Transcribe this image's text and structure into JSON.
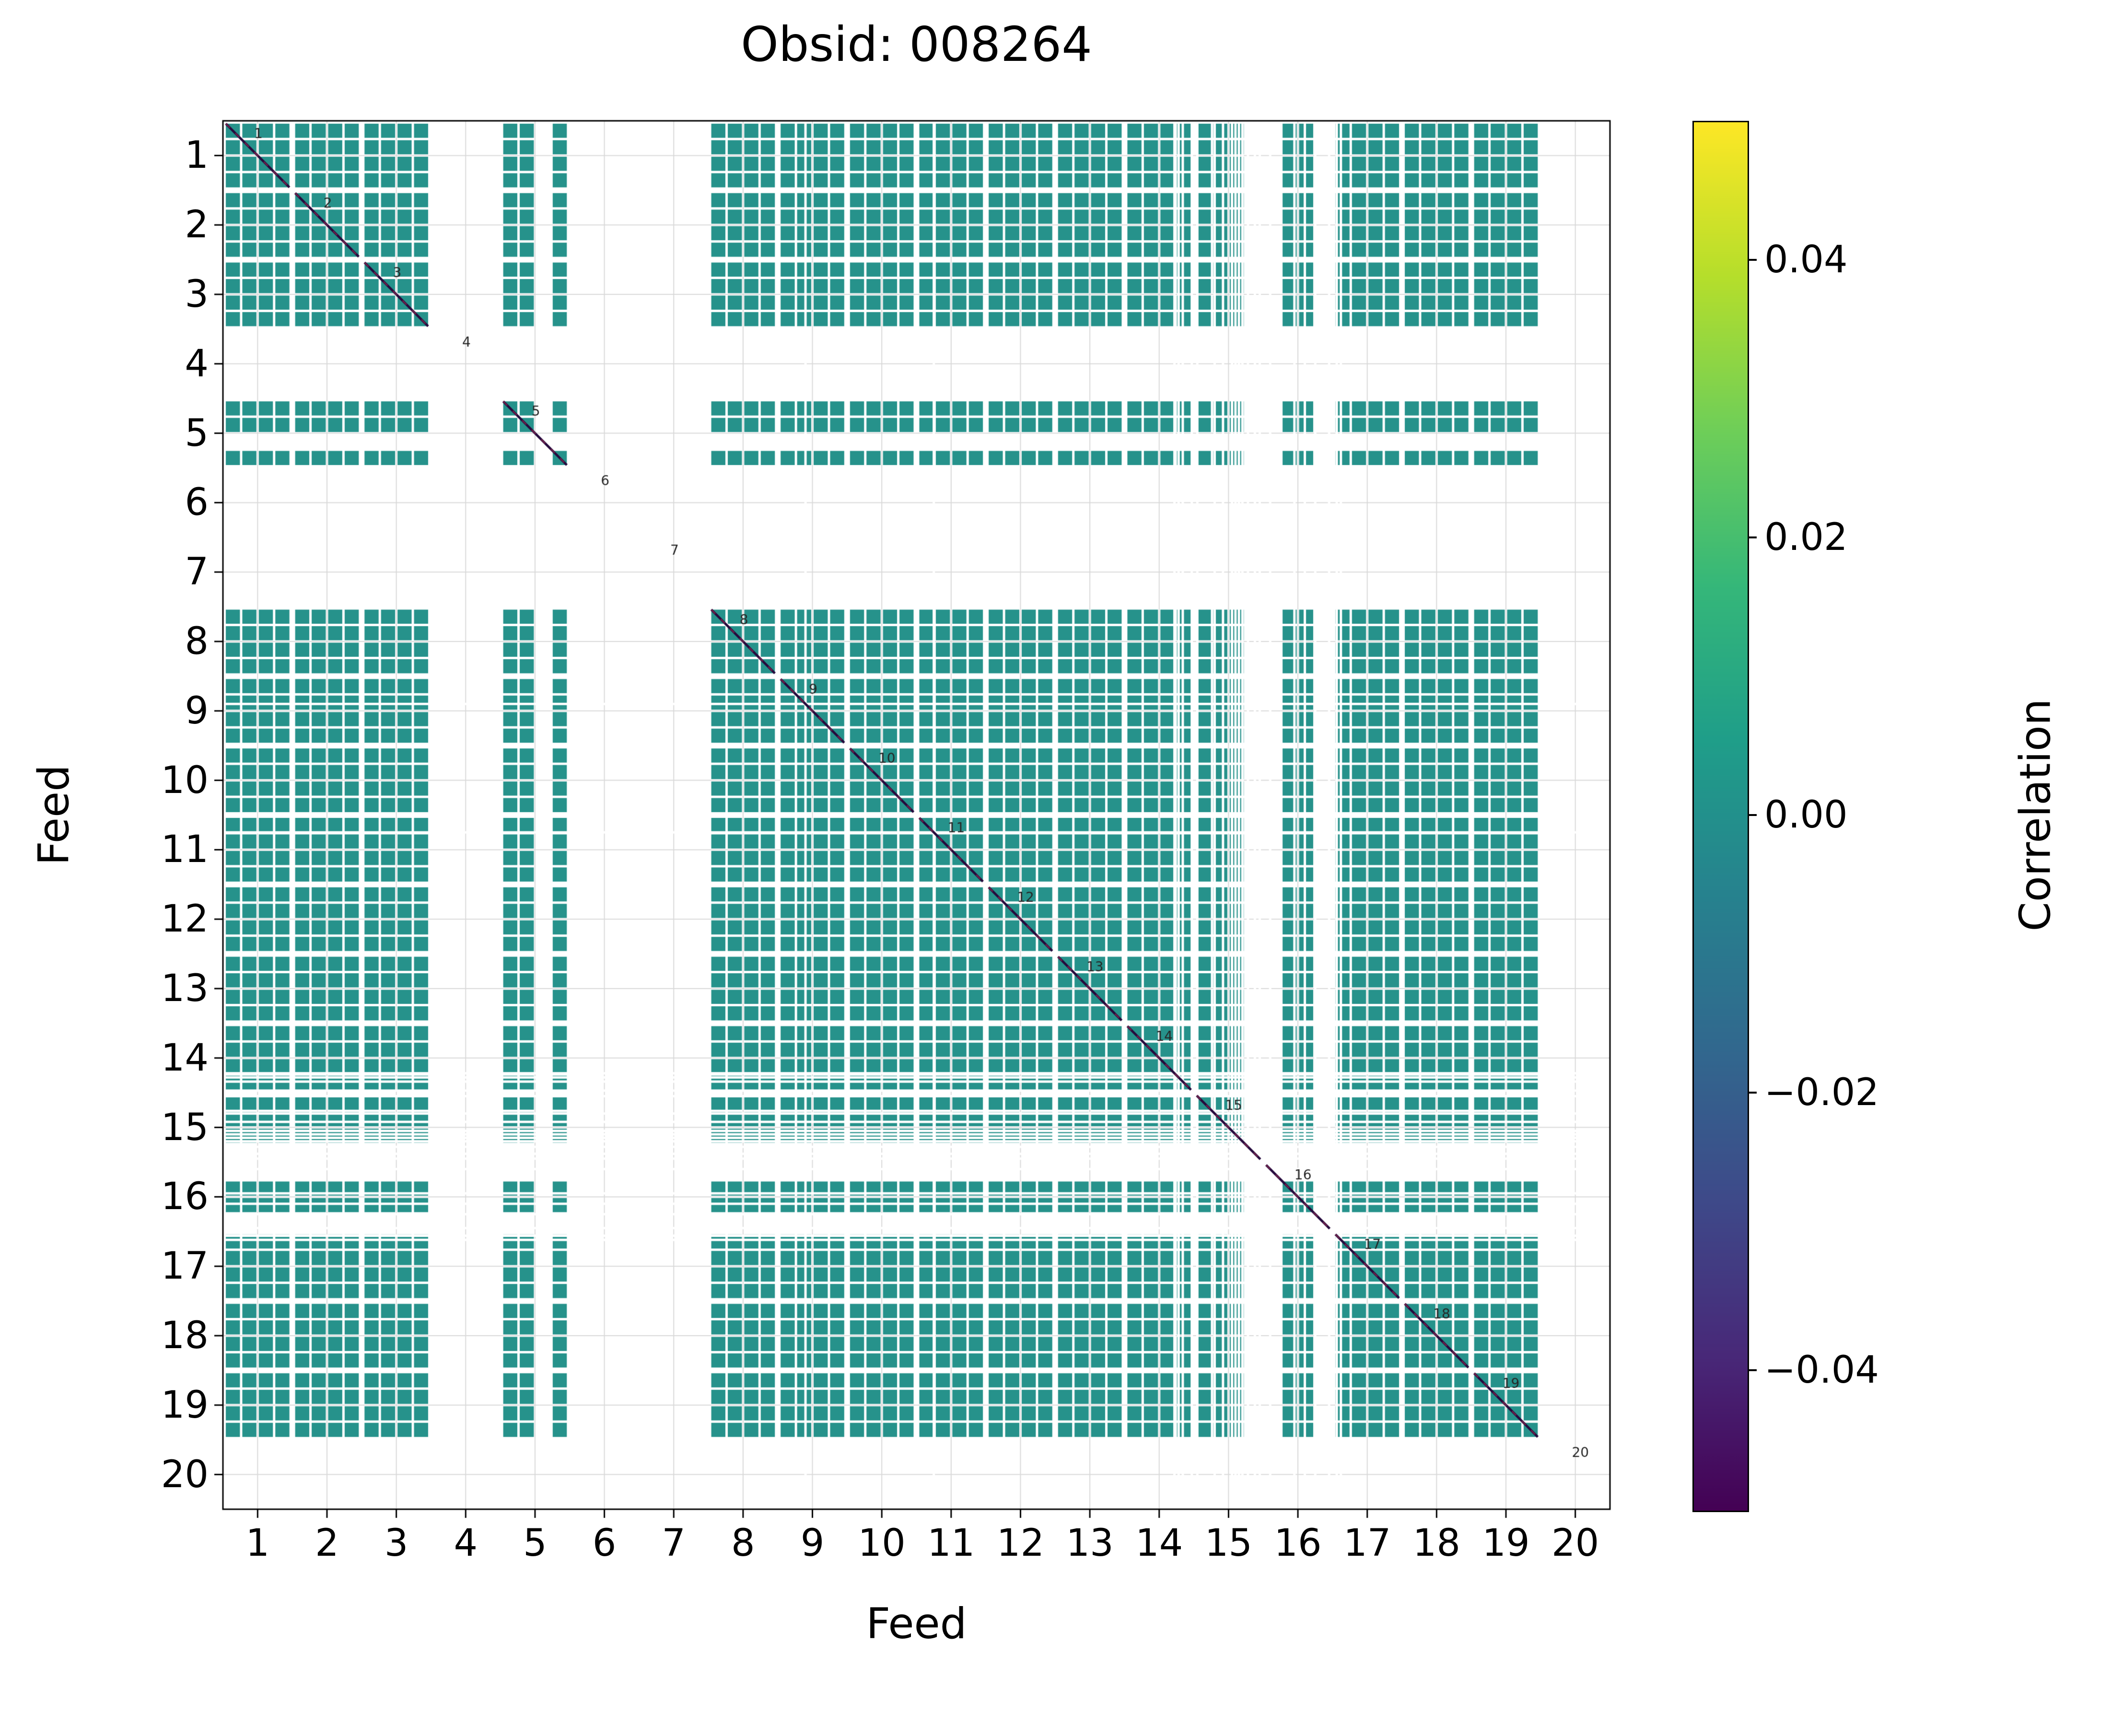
{
  "header": {
    "title": "Obsid: 008264",
    "obsid": "008264"
  },
  "chart_data": {
    "type": "heatmap",
    "title": "Obsid: 008264",
    "xlabel": "Feed",
    "ylabel": "Feed",
    "xlim": [
      0.5,
      20.5
    ],
    "ylim": [
      0.5,
      20.5
    ],
    "grid": true,
    "n_feeds": 20,
    "subbands_per_feed": 4,
    "x_ticks": [
      "1",
      "2",
      "3",
      "4",
      "5",
      "6",
      "7",
      "8",
      "9",
      "10",
      "11",
      "12",
      "13",
      "14",
      "15",
      "16",
      "17",
      "18",
      "19",
      "20"
    ],
    "y_ticks": [
      "1",
      "2",
      "3",
      "4",
      "5",
      "6",
      "7",
      "8",
      "9",
      "10",
      "11",
      "12",
      "13",
      "14",
      "15",
      "16",
      "17",
      "18",
      "19",
      "20"
    ],
    "diagonal_labels": [
      "1",
      "2",
      "3",
      "4",
      "5",
      "6",
      "7",
      "8",
      "9",
      "10",
      "11",
      "12",
      "13",
      "14",
      "15",
      "16",
      "17",
      "18",
      "19",
      "20"
    ],
    "feeds_present": {
      "1": [
        0,
        1,
        2,
        3
      ],
      "2": [
        0,
        1,
        2,
        3
      ],
      "3": [
        0,
        1,
        2,
        3
      ],
      "4": [],
      "5": [
        0,
        1,
        3
      ],
      "6": [],
      "7": [],
      "8": [
        0,
        1,
        2,
        3
      ],
      "9": [
        0,
        1,
        2,
        3
      ],
      "10": [
        0,
        1,
        2,
        3
      ],
      "11": [
        0,
        1,
        2,
        3
      ],
      "12": [
        0,
        1,
        2,
        3
      ],
      "13": [
        0,
        1,
        2,
        3
      ],
      "14": [
        0,
        1,
        2,
        3
      ],
      "15": [
        0,
        1,
        2
      ],
      "16": [
        1,
        2
      ],
      "17": [
        0,
        1,
        2,
        3
      ],
      "18": [
        0,
        1,
        2,
        3
      ],
      "19": [
        0,
        1,
        2,
        3
      ],
      "20": []
    },
    "missing_feeds": [
      4,
      6,
      7,
      20
    ],
    "flag_stripes": [
      {
        "feed": 9,
        "fracs": [
          0.4
        ]
      },
      {
        "feed": 11,
        "fracs": [
          0.25
        ]
      },
      {
        "feed": 14,
        "fracs": [
          0.72,
          0.78,
          0.84,
          0.97
        ]
      },
      {
        "feed": 15,
        "fracs": [
          0.05,
          0.3,
          0.42,
          0.55,
          0.6,
          0.65,
          0.7,
          0.78,
          0.88,
          0.95
        ]
      },
      {
        "feed": 16,
        "fracs": [
          0.1,
          0.45,
          0.6,
          0.75,
          0.95
        ]
      },
      {
        "feed": 17,
        "fracs": [
          0.06,
          0.12
        ]
      }
    ],
    "cell_value": 0.0,
    "cell_color": "#26928b",
    "diagonal_color": "#250a3d",
    "diagonal_dash_color": "#6b1f4a",
    "diagonal_label_color": "#262626",
    "grid_color": "#d9d9d9",
    "colorbar": {
      "label": "Correlation",
      "tick_labels": [
        "0.04",
        "0.02",
        "0.00",
        "−0.02",
        "−0.04"
      ],
      "tick_values": [
        0.04,
        0.02,
        0.0,
        -0.02,
        -0.04
      ],
      "vmin": -0.05,
      "vmax": 0.05,
      "colormap": "viridis",
      "gradient_stops": [
        "#440154",
        "#482878",
        "#3e4989",
        "#31688e",
        "#26828e",
        "#1f9e89",
        "#35b779",
        "#6ece58",
        "#b5de2b",
        "#fde725"
      ]
    }
  }
}
